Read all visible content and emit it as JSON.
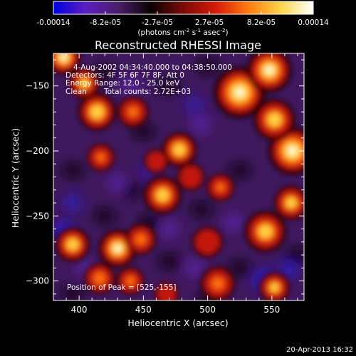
{
  "chart_data": {
    "type": "heatmap",
    "title": "Reconstructed RHESSI Image",
    "xlabel": "Heliocentric X (arcsec)",
    "ylabel": "Heliocentric Y (arcsec)",
    "x_range": [
      380,
      575
    ],
    "y_range": [
      -315,
      -125
    ],
    "x_ticks": [
      400,
      450,
      500,
      550
    ],
    "y_ticks": [
      -150,
      -200,
      -250,
      -300
    ],
    "colorbar": {
      "ticks": [
        "-0.00014",
        "-8.2e-05",
        "-2.7e-05",
        "2.7e-05",
        "8.2e-05",
        "0.00014"
      ],
      "unit_label": [
        "(photons cm",
        "-2",
        " s",
        "-1",
        " asec",
        "-2",
        ")"
      ],
      "min": -0.00014,
      "max": 0.00014,
      "colors": [
        "#0000e0",
        "#5a1fc0",
        "#4a1e68",
        "#0a0202",
        "#7a0a0a",
        "#d61a08",
        "#ff7a10",
        "#ffd64a",
        "#ffffff"
      ]
    },
    "peak_position": [
      525,
      -155
    ],
    "bright_regions": [
      {
        "x": 388,
        "y": -128,
        "intensity": 0.95,
        "r": 10
      },
      {
        "x": 404,
        "y": -148,
        "intensity": 0.75,
        "r": 9
      },
      {
        "x": 414,
        "y": -170,
        "intensity": 0.9,
        "r": 11
      },
      {
        "x": 442,
        "y": -170,
        "intensity": 0.6,
        "r": 9
      },
      {
        "x": 417,
        "y": -205,
        "intensity": 0.55,
        "r": 8
      },
      {
        "x": 478,
        "y": -199,
        "intensity": 0.9,
        "r": 10
      },
      {
        "x": 460,
        "y": -208,
        "intensity": 0.45,
        "r": 7
      },
      {
        "x": 465,
        "y": -234,
        "intensity": 0.85,
        "r": 11
      },
      {
        "x": 487,
        "y": -220,
        "intensity": 0.5,
        "r": 8
      },
      {
        "x": 510,
        "y": -228,
        "intensity": 0.55,
        "r": 8
      },
      {
        "x": 525,
        "y": -155,
        "intensity": 1.0,
        "r": 15
      },
      {
        "x": 548,
        "y": -138,
        "intensity": 0.95,
        "r": 13
      },
      {
        "x": 566,
        "y": -200,
        "intensity": 1.0,
        "r": 14
      },
      {
        "x": 552,
        "y": -176,
        "intensity": 0.85,
        "r": 12
      },
      {
        "x": 545,
        "y": -262,
        "intensity": 0.85,
        "r": 12
      },
      {
        "x": 565,
        "y": -240,
        "intensity": 0.8,
        "r": 10
      },
      {
        "x": 500,
        "y": -270,
        "intensity": 0.4,
        "r": 9
      },
      {
        "x": 430,
        "y": -275,
        "intensity": 0.95,
        "r": 11
      },
      {
        "x": 395,
        "y": -272,
        "intensity": 0.85,
        "r": 10
      },
      {
        "x": 448,
        "y": -268,
        "intensity": 0.65,
        "r": 9
      },
      {
        "x": 416,
        "y": -298,
        "intensity": 0.7,
        "r": 9
      },
      {
        "x": 440,
        "y": -300,
        "intensity": 0.6,
        "r": 8
      },
      {
        "x": 508,
        "y": -302,
        "intensity": 0.65,
        "r": 10
      },
      {
        "x": 552,
        "y": -305,
        "intensity": 0.75,
        "r": 9
      },
      {
        "x": 468,
        "y": -310,
        "intensity": 0.5,
        "r": 7
      }
    ],
    "dim_regions": [
      {
        "x": 388,
        "y": -262,
        "intensity": 0.85,
        "r": 8
      },
      {
        "x": 395,
        "y": -240,
        "intensity": 0.6,
        "r": 7
      },
      {
        "x": 545,
        "y": -300,
        "intensity": 0.9,
        "r": 9
      },
      {
        "x": 563,
        "y": -292,
        "intensity": 0.7,
        "r": 7
      },
      {
        "x": 455,
        "y": -215,
        "intensity": 0.5,
        "r": 7
      },
      {
        "x": 490,
        "y": -165,
        "intensity": 0.45,
        "r": 8
      }
    ]
  },
  "info": {
    "time_range": "4-Aug-2002 04:34:40.000 to 04:38:50.000",
    "detectors": "Detectors: 4F 5F 6F 7F 8F, Att 0",
    "energy_range": "Energy Range: 12.0 - 25.0 keV",
    "clean_label": "Clean",
    "total_counts": "Total counts: 2.72E+03",
    "peak_text": "Position of Peak = [525,-155]"
  },
  "footer": {
    "timestamp": "20-Apr-2013 16:32"
  }
}
